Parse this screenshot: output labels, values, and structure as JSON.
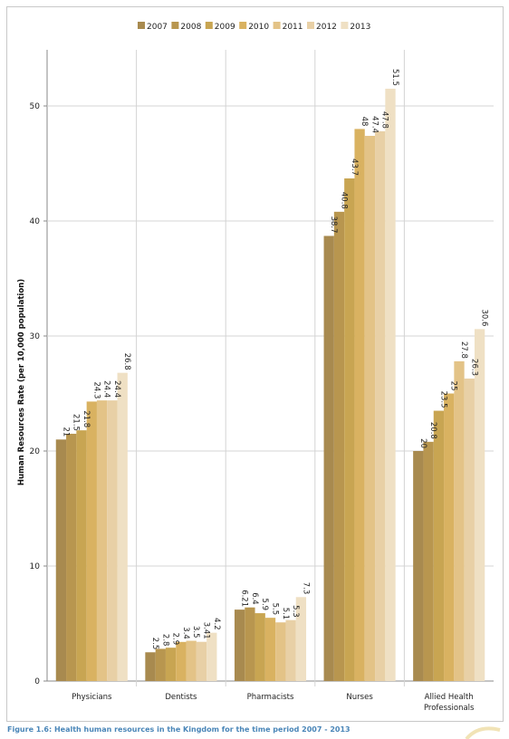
{
  "chart_data": {
    "type": "bar",
    "categories": [
      "Physicians",
      "Dentists",
      "Pharmacists",
      "Nurses",
      "Allied Health Professionals"
    ],
    "category_label_lines": [
      [
        "Physicians"
      ],
      [
        "Dentists"
      ],
      [
        "Pharmacists"
      ],
      [
        "Nurses"
      ],
      [
        "Allied Health",
        "Professionals"
      ]
    ],
    "series": [
      {
        "name": "2007",
        "values": [
          21,
          2.5,
          6.21,
          38.7,
          20
        ],
        "labels": [
          "21",
          "2.5",
          "6.21",
          "38.7",
          "20"
        ],
        "color": "#a88a4f"
      },
      {
        "name": "2008",
        "values": [
          21.5,
          2.8,
          6.4,
          40.8,
          20.8
        ],
        "labels": [
          "21.5",
          "2.8",
          "6.4",
          "40.8",
          "20.8"
        ],
        "color": "#b8964f"
      },
      {
        "name": "2009",
        "values": [
          21.8,
          2.9,
          5.9,
          43.7,
          23.5
        ],
        "labels": [
          "21.8",
          "2.9",
          "5.9",
          "43.7",
          "23.5"
        ],
        "color": "#c8a552"
      },
      {
        "name": "2010",
        "values": [
          24.3,
          3.4,
          5.5,
          48,
          25
        ],
        "labels": [
          "24.3",
          "3.4",
          "5.5",
          "48",
          "25"
        ],
        "color": "#d9b261"
      },
      {
        "name": "2011",
        "values": [
          24.4,
          3.5,
          5.1,
          47.4,
          27.8
        ],
        "labels": [
          "24.4",
          "3.5",
          "5.1",
          "47.4",
          "27.8"
        ],
        "color": "#e3c387"
      },
      {
        "name": "2012",
        "values": [
          24.4,
          3.41,
          5.3,
          47.8,
          26.3
        ],
        "labels": [
          "24.4",
          "3.41",
          "5.3",
          "47.8",
          "26.3"
        ],
        "color": "#e8d0a6"
      },
      {
        "name": "2013",
        "values": [
          26.8,
          4.2,
          7.3,
          51.5,
          30.6
        ],
        "labels": [
          "26.8",
          "4.2",
          "7.3",
          "51.5",
          "30.6"
        ],
        "color": "#efe0c4"
      }
    ],
    "ylabel": "Human Resources Rate (per 10,000 population)",
    "xlabel": "",
    "ylim": [
      0,
      55
    ],
    "yticks": [
      0,
      10,
      20,
      30,
      40,
      50
    ],
    "grid": true,
    "legend_position": "top"
  },
  "caption": "Figure 1.6: Health human resources in the Kingdom for the time period 2007 - 2013"
}
